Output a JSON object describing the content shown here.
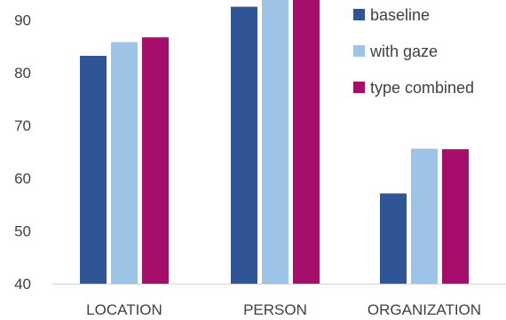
{
  "chart_data": {
    "type": "bar",
    "title": "",
    "xlabel": "",
    "ylabel": "",
    "categories": [
      "LOCATION",
      "PERSON",
      "ORGANIZATION"
    ],
    "series": [
      {
        "name": "baseline",
        "color": "#2f5597",
        "values": [
          83.2,
          92.5,
          57.1
        ]
      },
      {
        "name": "with gaze",
        "color": "#9dc3e6",
        "values": [
          85.8,
          94.5,
          65.6
        ]
      },
      {
        "name": "type combined",
        "color": "#a50f6b",
        "values": [
          86.7,
          94.8,
          65.5
        ]
      }
    ],
    "ylim": [
      40,
      95
    ],
    "yticks": [
      "40",
      "50",
      "60",
      "70",
      "80",
      "90"
    ],
    "grid": false,
    "legend_position": "top-right"
  }
}
